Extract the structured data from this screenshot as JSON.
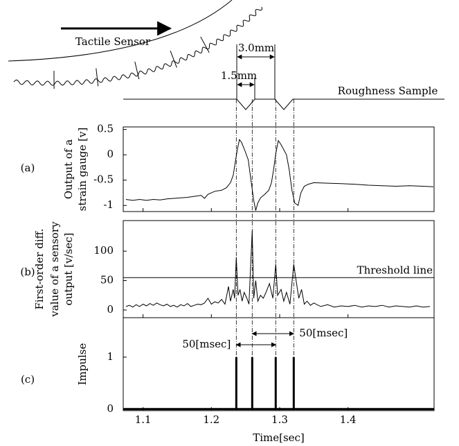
{
  "diagram": {
    "sensor_label": "Tactile Sensor",
    "sample_label": "Roughness Sample",
    "dimension_outer": "3.0mm",
    "dimension_inner": "1.5mm"
  },
  "chart_data": [
    {
      "type": "line",
      "panel_label": "(a)",
      "ylabel": [
        "Output of a",
        "strain gauge [v]"
      ],
      "xlim": [
        1.071,
        1.526
      ],
      "xticks": [
        1.1,
        1.2,
        1.3,
        1.4
      ],
      "ylim": [
        -1.12,
        0.55
      ],
      "yticks": [
        0.5,
        0,
        -0.5,
        -1
      ],
      "x": [
        1.075,
        1.085,
        1.095,
        1.105,
        1.115,
        1.125,
        1.135,
        1.145,
        1.155,
        1.165,
        1.175,
        1.185,
        1.19,
        1.195,
        1.205,
        1.215,
        1.222,
        1.228,
        1.232,
        1.235,
        1.238,
        1.241,
        1.244,
        1.247,
        1.25,
        1.254,
        1.258,
        1.262,
        1.265,
        1.268,
        1.272,
        1.278,
        1.284,
        1.288,
        1.291,
        1.294,
        1.298,
        1.302,
        1.306,
        1.31,
        1.314,
        1.318,
        1.322,
        1.327,
        1.331,
        1.336,
        1.342,
        1.35,
        1.37,
        1.39,
        1.41,
        1.43,
        1.45,
        1.47,
        1.49,
        1.51,
        1.525
      ],
      "series": [
        {
          "color": "#000000",
          "values": [
            -0.88,
            -0.9,
            -0.88,
            -0.9,
            -0.88,
            -0.89,
            -0.87,
            -0.86,
            -0.85,
            -0.84,
            -0.82,
            -0.8,
            -0.86,
            -0.78,
            -0.72,
            -0.7,
            -0.65,
            -0.55,
            -0.4,
            -0.15,
            0.1,
            0.3,
            0.25,
            0.15,
            0.05,
            -0.1,
            -0.5,
            -0.9,
            -1.1,
            -0.95,
            -0.85,
            -0.78,
            -0.7,
            -0.55,
            -0.3,
            0.0,
            0.28,
            0.2,
            0.1,
            0.0,
            -0.3,
            -0.7,
            -0.95,
            -1.0,
            -0.75,
            -0.62,
            -0.58,
            -0.55,
            -0.56,
            -0.57,
            -0.58,
            -0.6,
            -0.61,
            -0.62,
            -0.61,
            -0.62,
            -0.63
          ]
        }
      ]
    },
    {
      "type": "line",
      "panel_label": "(b)",
      "ylabel": [
        "First-order diff.",
        "value of a sensory",
        "output [v/sec]"
      ],
      "xlim": [
        1.071,
        1.526
      ],
      "xticks": [
        1.1,
        1.2,
        1.3,
        1.4
      ],
      "ylim": [
        -13,
        152
      ],
      "yticks": [
        0,
        50,
        100
      ],
      "threshold": {
        "value": 55,
        "label": "Threshold line"
      },
      "x": [
        1.075,
        1.08,
        1.085,
        1.09,
        1.095,
        1.1,
        1.105,
        1.11,
        1.115,
        1.12,
        1.125,
        1.13,
        1.135,
        1.14,
        1.145,
        1.15,
        1.155,
        1.16,
        1.165,
        1.17,
        1.175,
        1.18,
        1.185,
        1.19,
        1.195,
        1.2,
        1.205,
        1.21,
        1.215,
        1.22,
        1.225,
        1.228,
        1.232,
        1.234,
        1.2365,
        1.239,
        1.242,
        1.245,
        1.248,
        1.252,
        1.255,
        1.2598,
        1.262,
        1.265,
        1.268,
        1.272,
        1.276,
        1.28,
        1.285,
        1.29,
        1.2942,
        1.297,
        1.302,
        1.306,
        1.31,
        1.315,
        1.3206,
        1.324,
        1.328,
        1.332,
        1.336,
        1.34,
        1.345,
        1.35,
        1.36,
        1.37,
        1.38,
        1.39,
        1.4,
        1.41,
        1.42,
        1.43,
        1.44,
        1.45,
        1.46,
        1.47,
        1.48,
        1.49,
        1.5,
        1.51,
        1.52
      ],
      "series": [
        {
          "color": "#000000",
          "values": [
            6,
            8,
            5,
            9,
            6,
            10,
            7,
            11,
            8,
            12,
            9,
            7,
            10,
            6,
            8,
            5,
            9,
            7,
            11,
            6,
            8,
            10,
            9,
            12,
            20,
            10,
            14,
            12,
            18,
            10,
            40,
            15,
            35,
            20,
            90,
            25,
            35,
            15,
            30,
            20,
            10,
            135,
            20,
            50,
            15,
            25,
            20,
            30,
            45,
            20,
            78,
            25,
            35,
            15,
            30,
            10,
            78,
            50,
            20,
            35,
            10,
            15,
            8,
            12,
            6,
            9,
            5,
            7,
            6,
            8,
            5,
            7,
            6,
            8,
            5,
            7,
            6,
            5,
            7,
            5,
            6
          ]
        }
      ]
    },
    {
      "type": "stem",
      "panel_label": "(c)",
      "ylabel": [
        "Impulse"
      ],
      "xlabel": "Time[sec]",
      "xlim": [
        1.071,
        1.526
      ],
      "xticks": [
        1.1,
        1.2,
        1.3,
        1.4
      ],
      "ylim": [
        -0.03,
        1.76
      ],
      "yticks": [
        0,
        1
      ],
      "annotations": [
        "50[msec]",
        "50[msec]"
      ],
      "x": [
        1.2365,
        1.2598,
        1.2942,
        1.3206
      ],
      "series": [
        {
          "color": "#000000",
          "values": [
            1,
            1,
            1,
            1
          ]
        }
      ]
    }
  ]
}
